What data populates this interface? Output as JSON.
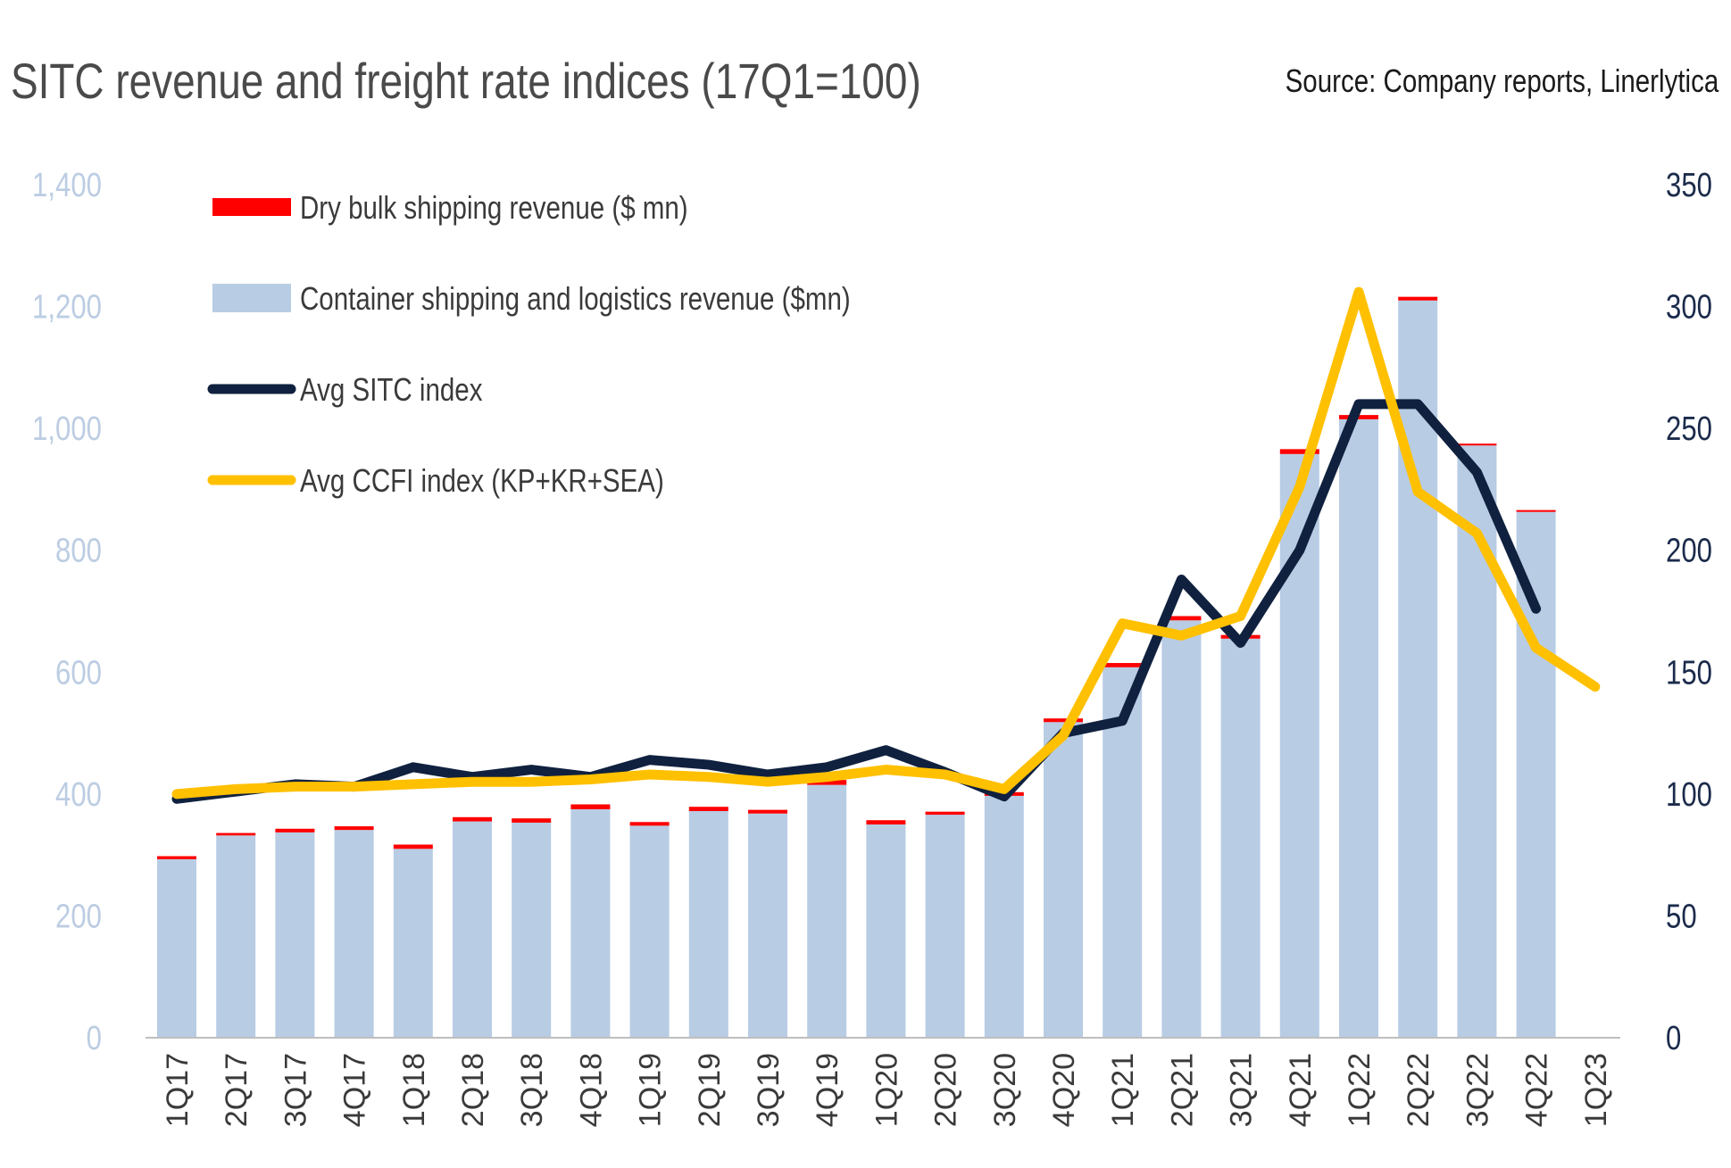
{
  "title": "SITC revenue and freight rate indices (17Q1=100)",
  "source": "Source: Company reports, Linerlytica",
  "colors": {
    "dry_bulk": "#ff0000",
    "container": "#b8cce4",
    "sitc_line": "#10213f",
    "ccfi_line": "#ffc000",
    "left_axis_text": "#bccde3",
    "right_axis_text": "#1b2b4b"
  },
  "chart_data": {
    "type": "bar",
    "title": "SITC revenue and freight rate indices (17Q1=100)",
    "categories": [
      "1Q17",
      "2Q17",
      "3Q17",
      "4Q17",
      "1Q18",
      "2Q18",
      "3Q18",
      "4Q18",
      "1Q19",
      "2Q19",
      "3Q19",
      "4Q19",
      "1Q20",
      "2Q20",
      "3Q20",
      "4Q20",
      "1Q21",
      "2Q21",
      "3Q21",
      "4Q21",
      "1Q22",
      "2Q22",
      "3Q22",
      "4Q22",
      "1Q23"
    ],
    "left_axis": {
      "min": 0,
      "max": 1400,
      "ticks": [
        "0",
        "200",
        "400",
        "600",
        "800",
        "1,000",
        "1,200",
        "1,400"
      ]
    },
    "right_axis": {
      "min": 0,
      "max": 350,
      "ticks": [
        "0",
        "50",
        "100",
        "150",
        "200",
        "250",
        "300",
        "350"
      ]
    },
    "series": [
      {
        "name": "Container shipping and logistics revenue ($mn)",
        "kind": "bar-stack",
        "axis": "left",
        "values": [
          293,
          332,
          337,
          341,
          310,
          355,
          353,
          375,
          348,
          372,
          368,
          415,
          350,
          366,
          397,
          518,
          608,
          685,
          655,
          958,
          1015,
          1210,
          972,
          863,
          null
        ]
      },
      {
        "name": "Dry bulk shipping revenue ($ mn)",
        "kind": "bar-stack",
        "axis": "left",
        "values": [
          5,
          4,
          6,
          6,
          7,
          7,
          7,
          8,
          6,
          7,
          6,
          8,
          7,
          5,
          6,
          6,
          7,
          7,
          6,
          8,
          7,
          6,
          3,
          3,
          null
        ]
      },
      {
        "name": "Avg SITC index",
        "kind": "line",
        "axis": "right",
        "values": [
          98,
          101,
          104,
          103,
          111,
          107,
          110,
          107,
          114,
          112,
          108,
          111,
          118,
          109,
          99,
          125,
          130,
          188,
          162,
          200,
          260,
          260,
          232,
          176,
          null
        ]
      },
      {
        "name": "Avg CCFI index (KP+KR+SEA)",
        "kind": "line",
        "axis": "right",
        "values": [
          100,
          102,
          103,
          103,
          104,
          105,
          105,
          106,
          108,
          107,
          105,
          107,
          110,
          108,
          102,
          124,
          170,
          165,
          173,
          226,
          306,
          224,
          207,
          160,
          144
        ]
      }
    ],
    "legend": [
      "Dry bulk shipping revenue ($ mn)",
      "Container shipping and logistics revenue ($mn)",
      "Avg SITC index",
      "Avg CCFI index (KP+KR+SEA)"
    ],
    "legend_position": "top-left",
    "xlabel": "",
    "ylabel": "",
    "grid": false
  }
}
